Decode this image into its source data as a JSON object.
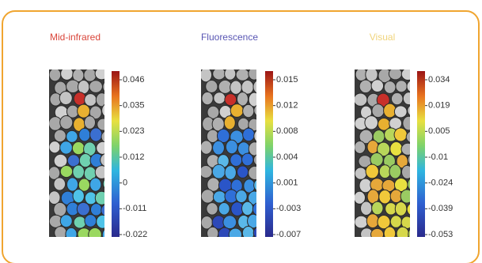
{
  "panels": [
    {
      "title": "Mid-infrared",
      "title_color": "#d9453a",
      "scale_ticks": [
        "0.046",
        "0.035",
        "0.023",
        "0.012",
        "0",
        "-0.011",
        "-0.022"
      ]
    },
    {
      "title": "Fluorescence",
      "title_color": "#5855b3",
      "scale_ticks": [
        "0.015",
        "0.012",
        "0.008",
        "0.004",
        "0.001",
        "-0.003",
        "-0.007"
      ]
    },
    {
      "title": "Visual",
      "title_color": "#f0d47c",
      "scale_ticks": [
        "0.034",
        "0.019",
        "0.005",
        "-0.01",
        "-0.024",
        "-0.039",
        "-0.053"
      ]
    }
  ]
}
